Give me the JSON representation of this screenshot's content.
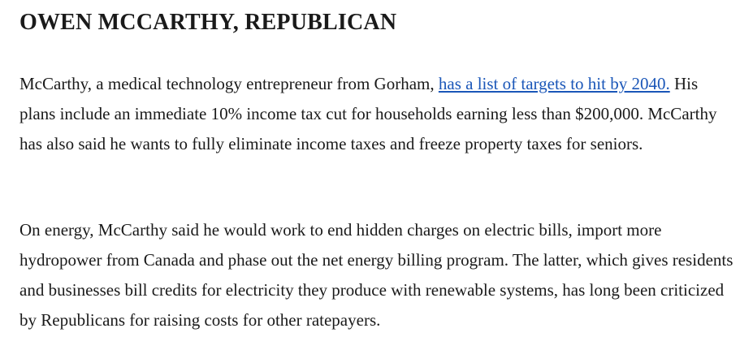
{
  "heading": "OWEN MCCARTHY, REPUBLICAN",
  "p1": {
    "before": "McCarthy, a medical technology entrepreneur from Gorham, ",
    "link": "has a list of targets to hit by 2040.",
    "after": " His plans include an immediate 10% income tax cut for households earning less than $200,000. McCarthy has also said he wants to fully eliminate income taxes and freeze property taxes for seniors."
  },
  "p2": "On energy, McCarthy said he would work to end hidden charges on electric bills, import more hydropower from Canada and phase out the net energy billing program. The latter, which gives residents and businesses bill credits for electricity they produce with renewable systems, has long been criticized by Republicans for raising costs for other ratepayers."
}
